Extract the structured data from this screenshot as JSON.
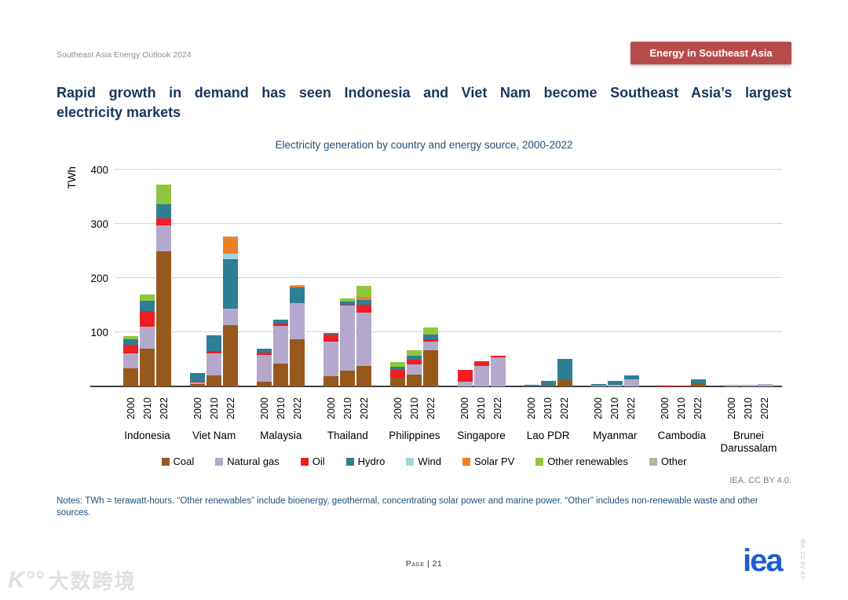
{
  "header": {
    "outlook_label": "Southeast Asia Energy Outlook 2024",
    "banner_label": "Energy in Southeast Asia",
    "banner_color": "#b84c4a"
  },
  "title": {
    "line1": "Rapid growth in demand has seen Indonesia and Viet Nam become Southeast Asia’s largest",
    "line2": "electricity markets"
  },
  "notes": {
    "text": "Notes: TWh = terawatt-hours. “Other renewables” include bioenergy, geothermal, concentrating solar power and marine power. “Other” includes non-renewable waste and other sources."
  },
  "credit": {
    "chart_license": "IEA. CC BY 4.0."
  },
  "footer": {
    "page_label": "Page | 21",
    "logo_text": "iea",
    "side_license": "IEA. CC BY 4.0"
  },
  "watermark": {
    "logo_text": "K°°",
    "text": "大数跨境"
  },
  "chart_data": {
    "type": "bar",
    "stacked": true,
    "title": "Electricity generation by country and energy source, 2000-2022",
    "ylabel": "TWh",
    "ylim": [
      0,
      400
    ],
    "yticks": [
      100,
      200,
      300,
      400
    ],
    "grid": "dotted-horizontal",
    "legend_position": "bottom",
    "unit": "TWh",
    "series_order": [
      "coal",
      "natural_gas",
      "oil",
      "hydro",
      "wind",
      "solar_pv",
      "other_renewables",
      "other"
    ],
    "legend": [
      {
        "key": "coal",
        "label": "Coal",
        "color": "#97591b"
      },
      {
        "key": "natural_gas",
        "label": "Natural gas",
        "color": "#b4a9cc"
      },
      {
        "key": "oil",
        "label": "Oil",
        "color": "#ee1e23"
      },
      {
        "key": "hydro",
        "label": "Hydro",
        "color": "#2d7f95"
      },
      {
        "key": "wind",
        "label": "Wind",
        "color": "#a7d4db"
      },
      {
        "key": "solar_pv",
        "label": "Solar PV",
        "color": "#ee8023"
      },
      {
        "key": "other_renewables",
        "label": "Other renewables",
        "color": "#8ec63f"
      },
      {
        "key": "other",
        "label": "Other",
        "color": "#b3b59c"
      }
    ],
    "years": [
      "2000",
      "2010",
      "2022"
    ],
    "groups": [
      {
        "country": "Indonesia",
        "bars": [
          {
            "year": "2000",
            "values": {
              "coal": 34,
              "natural_gas": 27,
              "oil": 16,
              "hydro": 10,
              "other_renewables": 6
            }
          },
          {
            "year": "2010",
            "values": {
              "coal": 70,
              "natural_gas": 40,
              "oil": 29,
              "hydro": 19,
              "other_renewables": 11
            }
          },
          {
            "year": "2022",
            "values": {
              "coal": 249,
              "natural_gas": 48,
              "oil": 13,
              "hydro": 26,
              "other_renewables": 36
            }
          }
        ]
      },
      {
        "country": "Viet Nam",
        "bars": [
          {
            "year": "2000",
            "values": {
              "coal": 4,
              "natural_gas": 3,
              "oil": 2,
              "hydro": 15
            }
          },
          {
            "year": "2010",
            "values": {
              "coal": 20,
              "natural_gas": 41,
              "oil": 4,
              "hydro": 29
            }
          },
          {
            "year": "2022",
            "values": {
              "coal": 113,
              "natural_gas": 30,
              "hydro": 92,
              "wind": 10,
              "solar_pv": 30,
              "other": 2
            }
          }
        ]
      },
      {
        "country": "Malaysia",
        "bars": [
          {
            "year": "2000",
            "values": {
              "coal": 9,
              "natural_gas": 49,
              "oil": 5,
              "hydro": 7
            }
          },
          {
            "year": "2010",
            "values": {
              "coal": 42,
              "natural_gas": 70,
              "oil": 4,
              "hydro": 7
            }
          },
          {
            "year": "2022",
            "values": {
              "coal": 87,
              "natural_gas": 67,
              "hydro": 29,
              "solar_pv": 2,
              "other": 2
            }
          }
        ]
      },
      {
        "country": "Thailand",
        "bars": [
          {
            "year": "2000",
            "values": {
              "coal": 19,
              "natural_gas": 63,
              "oil": 13,
              "hydro": 3
            }
          },
          {
            "year": "2010",
            "values": {
              "coal": 29,
              "natural_gas": 120,
              "oil": 2,
              "hydro": 6,
              "other_renewables": 5
            }
          },
          {
            "year": "2022",
            "values": {
              "coal": 38,
              "natural_gas": 98,
              "oil": 15,
              "hydro": 9,
              "solar_pv": 6,
              "other_renewables": 20
            }
          }
        ]
      },
      {
        "country": "Philippines",
        "bars": [
          {
            "year": "2000",
            "values": {
              "coal": 17,
              "oil": 13,
              "hydro": 6,
              "other_renewables": 9
            }
          },
          {
            "year": "2010",
            "values": {
              "coal": 22,
              "natural_gas": 18,
              "oil": 10,
              "hydro": 7,
              "other_renewables": 10
            }
          },
          {
            "year": "2022",
            "values": {
              "coal": 66,
              "natural_gas": 17,
              "oil": 4,
              "hydro": 9,
              "other_renewables": 13
            }
          }
        ]
      },
      {
        "country": "Singapore",
        "bars": [
          {
            "year": "2000",
            "values": {
              "natural_gas": 9,
              "oil": 22
            }
          },
          {
            "year": "2010",
            "values": {
              "natural_gas": 37,
              "oil": 9
            }
          },
          {
            "year": "2022",
            "values": {
              "natural_gas": 54,
              "oil": 2
            }
          }
        ]
      },
      {
        "country": "Lao PDR",
        "bars": [
          {
            "year": "2000",
            "values": {
              "hydro": 3
            }
          },
          {
            "year": "2010",
            "values": {
              "coal": 1,
              "hydro": 9
            }
          },
          {
            "year": "2022",
            "values": {
              "coal": 12,
              "hydro": 39
            }
          }
        ]
      },
      {
        "country": "Myanmar",
        "bars": [
          {
            "year": "2000",
            "values": {
              "natural_gas": 2,
              "hydro": 2,
              "other": 1
            }
          },
          {
            "year": "2010",
            "values": {
              "natural_gas": 3,
              "hydro": 7
            }
          },
          {
            "year": "2022",
            "values": {
              "natural_gas": 13,
              "hydro": 7
            }
          }
        ]
      },
      {
        "country": "Cambodia",
        "bars": [
          {
            "year": "2000",
            "values": {
              "oil": 0.5
            }
          },
          {
            "year": "2010",
            "values": {
              "oil": 1.5,
              "hydro": 0.5
            }
          },
          {
            "year": "2022",
            "values": {
              "coal": 6,
              "hydro": 7
            }
          }
        ]
      },
      {
        "country": "Brunei Darussalam",
        "bars": [
          {
            "year": "2000",
            "values": {
              "natural_gas": 2.5
            }
          },
          {
            "year": "2010",
            "values": {
              "natural_gas": 3.5
            }
          },
          {
            "year": "2022",
            "values": {
              "natural_gas": 4,
              "oil": 0.5
            }
          }
        ]
      }
    ]
  }
}
